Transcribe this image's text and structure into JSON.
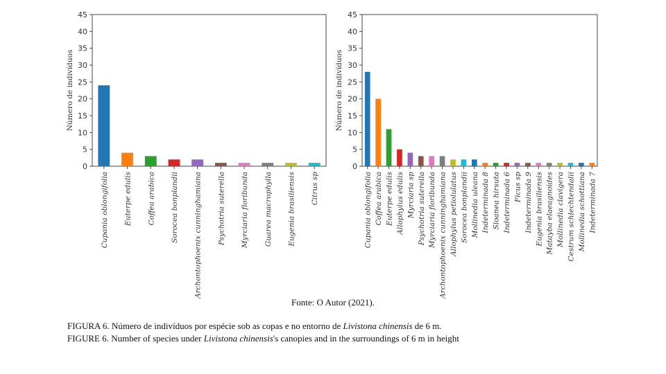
{
  "source": "Fonte: O Autor (2021).",
  "caption_pt": {
    "pre": "FIGURA 6. Número de indivíduos por espécie sob as copas e no entorno de ",
    "species": "Livistona chinensis",
    "post": " de 6 m."
  },
  "caption_en": {
    "pre": "FIGURE 6. Number of species under ",
    "species": "Livistona chinensis",
    "post": "'s canopies and in the surroundings of 6 m in height"
  },
  "chart_data": [
    {
      "type": "bar",
      "title": "",
      "xlabel": "",
      "ylabel": "Número de indivíduos",
      "ylim": [
        0,
        45
      ],
      "yticks": [
        0,
        5,
        10,
        15,
        20,
        25,
        30,
        35,
        40,
        45
      ],
      "grid": false,
      "categories": [
        "Cupania oblongifolia",
        "Euterpe edulis",
        "Coffea arabica",
        "Sorocea bonplandii",
        "Archontophoenix cunninghamiana",
        "Psychotria suterella",
        "Myrciaria floribunda",
        "Guarea macrophylla",
        "Eugenia brasiliensis",
        "Citrus sp"
      ],
      "values": [
        24,
        4,
        3,
        2,
        2,
        1,
        1,
        1,
        1,
        1
      ],
      "colors": [
        "#1f77b4",
        "#ff7f0e",
        "#2ca02c",
        "#d62728",
        "#9467bd",
        "#8c564b",
        "#e377c2",
        "#7f7f7f",
        "#bcbd22",
        "#17becf"
      ]
    },
    {
      "type": "bar",
      "title": "",
      "xlabel": "",
      "ylabel": "Número de indivíduos",
      "ylim": [
        0,
        45
      ],
      "yticks": [
        0,
        5,
        10,
        15,
        20,
        25,
        30,
        35,
        40,
        45
      ],
      "grid": false,
      "categories": [
        "Cupania oblongifolia",
        "Coffea arabica",
        "Euterpe edulis",
        "Allophylus edulis",
        "Myrciaria sp",
        "Psychotria suterella",
        "Myrciaria floribunda",
        "Archontophoenix cunninghamiana",
        "Allophylus petiolulatus",
        "Sorocea bonplandii",
        "Mollinedia uleana",
        "Indeterminada 8",
        "Sloanea hirsuta",
        "Indeterminada 6",
        "Ficus sp",
        "Indeterminada 9",
        "Eugenia brasiliensis",
        "Matayba elaeagnoides",
        "Mollinedia clavigera",
        "Cestrum schlechtendalii",
        "Mollinedia schottiana",
        "Indeterminada 7"
      ],
      "values": [
        28,
        20,
        11,
        5,
        4,
        3,
        3,
        3,
        2,
        2,
        2,
        1,
        1,
        1,
        1,
        1,
        1,
        1,
        1,
        1,
        1,
        1
      ],
      "colors": [
        "#1f77b4",
        "#ff7f0e",
        "#2ca02c",
        "#d62728",
        "#9467bd",
        "#8c564b",
        "#e377c2",
        "#7f7f7f",
        "#bcbd22",
        "#17becf",
        "#1f77b4",
        "#ff7f0e",
        "#2ca02c",
        "#d62728",
        "#9467bd",
        "#8c564b",
        "#e377c2",
        "#7f7f7f",
        "#bcbd22",
        "#17becf",
        "#1f77b4",
        "#ff7f0e"
      ]
    }
  ]
}
